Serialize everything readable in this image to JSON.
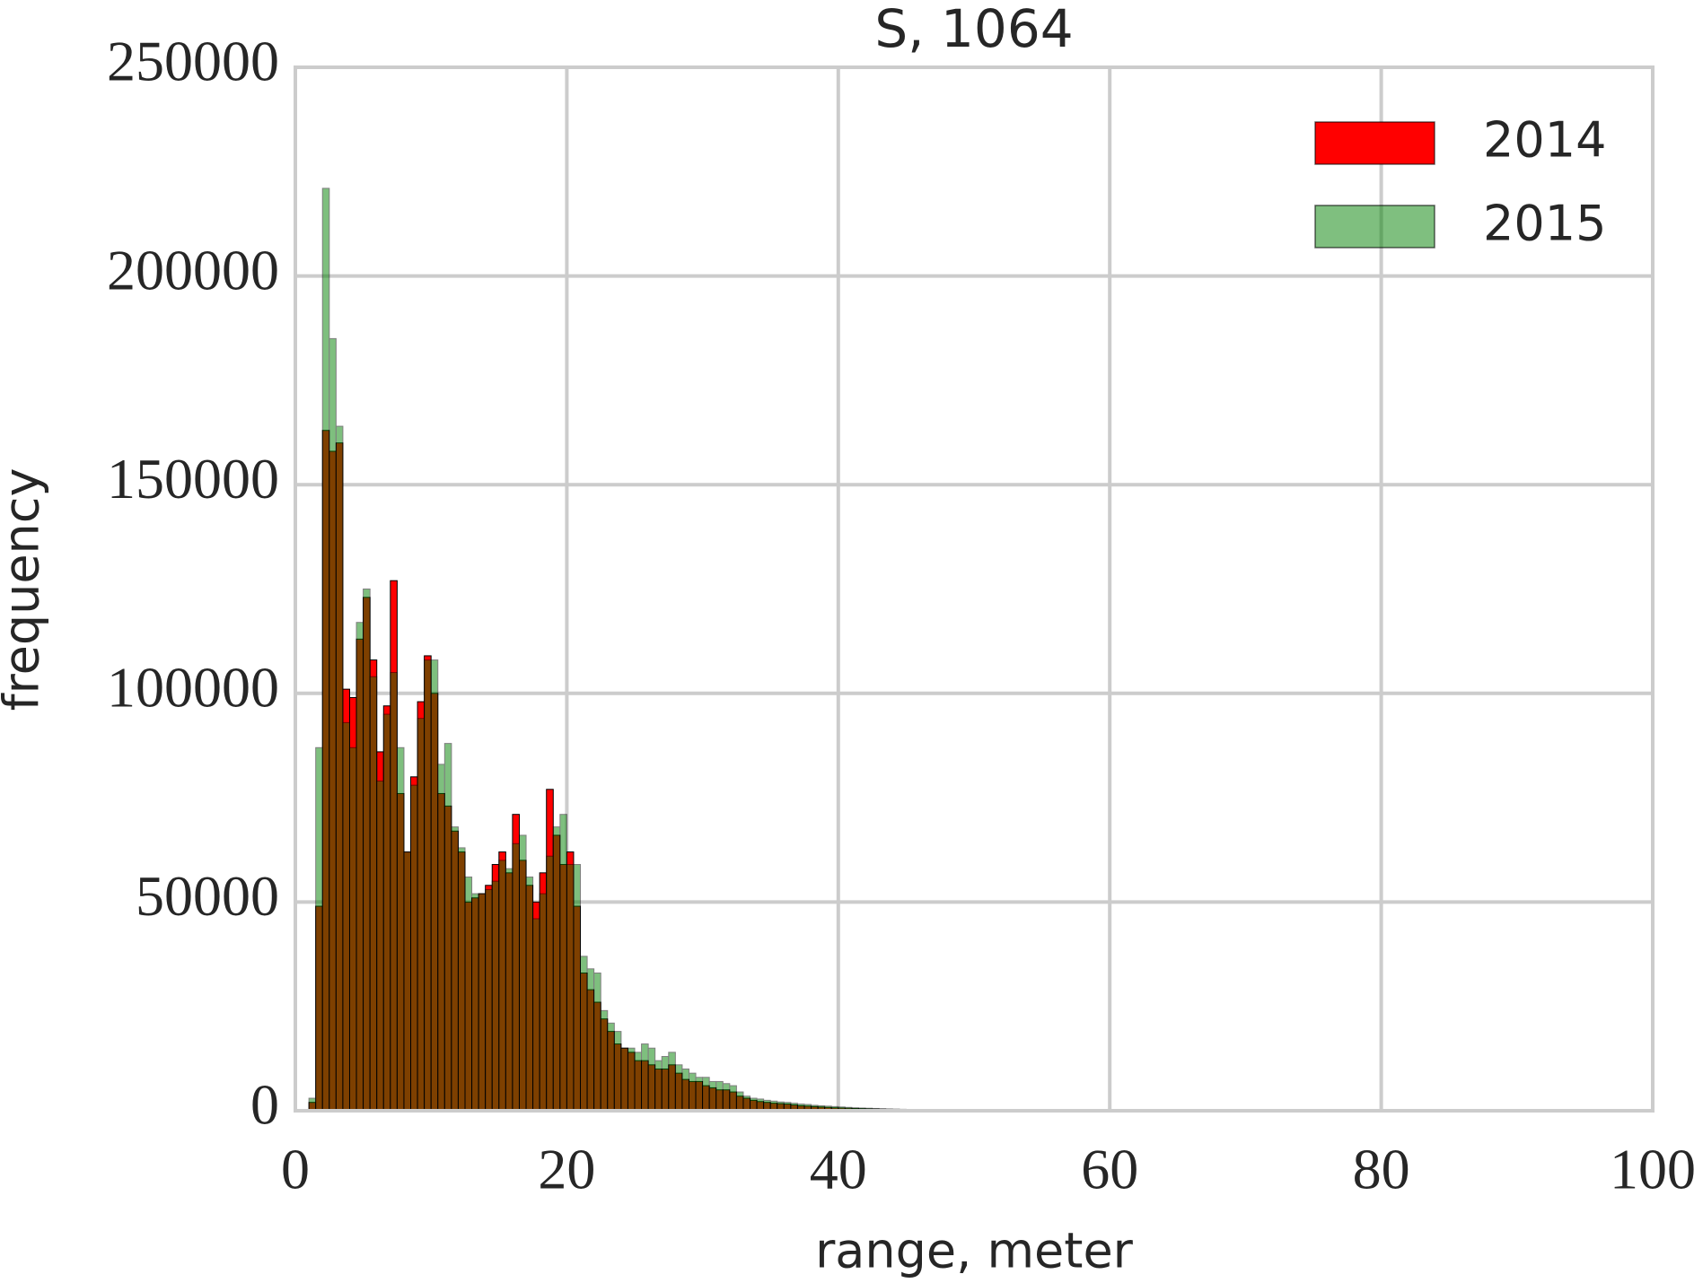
{
  "chart_data": {
    "type": "histogram",
    "title": "S, 1064",
    "xlabel": "range, meter",
    "ylabel": "frequency",
    "bins": [
      1.0,
      1.5,
      2.0,
      2.5,
      3.0,
      3.5,
      4.0,
      4.5,
      5.0,
      5.5,
      6.0,
      6.5,
      7.0,
      7.5,
      8.0,
      8.5,
      9.0,
      9.5,
      10.0,
      10.5,
      11.0,
      11.5,
      12.0,
      12.5,
      13.0,
      13.5,
      14.0,
      14.5,
      15.0,
      15.5,
      16.0,
      16.5,
      17.0,
      17.5,
      18.0,
      18.5,
      19.0,
      19.5,
      20.0,
      20.5,
      21.0,
      21.5,
      22.0,
      22.5,
      23.0,
      23.5,
      24.0,
      24.5,
      25.0,
      25.5,
      26.0,
      26.5,
      27.0,
      27.5,
      28.0,
      28.5,
      29.0,
      29.5,
      30.0,
      30.5,
      31.0,
      31.5,
      32.0,
      32.5,
      33.0,
      33.5,
      34.0,
      34.5,
      35.0,
      35.5,
      36.0,
      36.5,
      37.0,
      37.5,
      38.0,
      38.5,
      39.0,
      39.5,
      40.0,
      40.5,
      41.0,
      41.5,
      42.0,
      42.5,
      43.0,
      43.5,
      44.0,
      44.5,
      45.0,
      45.5,
      46.0,
      46.5,
      47.0,
      47.5,
      48.0,
      48.5,
      49.0,
      49.5,
      50.0,
      50.5,
      51.0,
      51.5,
      52.0
    ],
    "series": [
      {
        "name": "2014",
        "color": "#ff0000",
        "alpha": 1,
        "values": [
          2000,
          49000,
          163000,
          158000,
          160000,
          101000,
          99000,
          113000,
          123000,
          108000,
          86000,
          97000,
          127000,
          76000,
          62000,
          80000,
          98000,
          109000,
          100000,
          76000,
          73000,
          67000,
          62000,
          50000,
          51000,
          52000,
          54000,
          59000,
          62000,
          57000,
          71000,
          60000,
          54000,
          50000,
          57000,
          77000,
          66000,
          59000,
          62000,
          49000,
          33000,
          29000,
          26000,
          22000,
          19000,
          16000,
          15000,
          14000,
          12000,
          12000,
          11000,
          10000,
          10000,
          11000,
          9000,
          7500,
          7000,
          7000,
          6000,
          5500,
          5000,
          5000,
          4500,
          3500,
          3000,
          2500,
          2200,
          2000,
          1800,
          1700,
          1600,
          1400,
          1200,
          1100,
          1000,
          900,
          800,
          700,
          650,
          600,
          550,
          500,
          450,
          400,
          350,
          300,
          280,
          250,
          220,
          200,
          180,
          160,
          140,
          120,
          110,
          100,
          90,
          80,
          70,
          60,
          50,
          40
        ]
      },
      {
        "name": "2015",
        "color": "#008000",
        "alpha": 0.5,
        "values": [
          3000,
          87000,
          221000,
          185000,
          164000,
          93000,
          87000,
          117000,
          125000,
          104000,
          79000,
          95000,
          105000,
          87000,
          62000,
          78000,
          94000,
          108000,
          108000,
          83000,
          88000,
          68000,
          63000,
          56000,
          52000,
          52000,
          53000,
          55000,
          60000,
          58000,
          64000,
          66000,
          56000,
          46000,
          52000,
          61000,
          68000,
          71000,
          59000,
          59000,
          37000,
          34000,
          33000,
          24000,
          21000,
          19000,
          15000,
          15000,
          14000,
          16000,
          15000,
          12000,
          13000,
          14000,
          11000,
          10000,
          9000,
          8000,
          8000,
          7000,
          7000,
          6500,
          6000,
          4500,
          3500,
          3000,
          2800,
          2500,
          2300,
          2100,
          2000,
          1800,
          1600,
          1500,
          1300,
          1200,
          1100,
          1000,
          900,
          800,
          700,
          650,
          600,
          550,
          500,
          450,
          400,
          350,
          300,
          280,
          250,
          220,
          200,
          180,
          160,
          140,
          120,
          110,
          100,
          90,
          80,
          70
        ]
      }
    ],
    "xlim": [
      0,
      100
    ],
    "xticks": [
      0,
      20,
      40,
      60,
      80,
      100
    ],
    "ylim": [
      0,
      250000
    ],
    "yticks": [
      0,
      50000,
      100000,
      150000,
      200000,
      250000
    ],
    "grid": true,
    "legend": "upper right"
  }
}
